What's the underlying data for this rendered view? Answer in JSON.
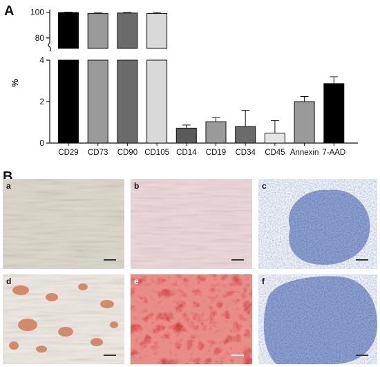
{
  "panels": {
    "a_label": "A",
    "b_label": "B"
  },
  "chart_data": {
    "type": "bar",
    "xlabel": "",
    "ylabel": "%",
    "categories": [
      "CD29",
      "CD73",
      "CD90",
      "CD105",
      "CD14",
      "CD19",
      "CD34",
      "CD45",
      "Annexin",
      "7-AAD"
    ],
    "values": [
      99.8,
      99.0,
      99.4,
      99.0,
      0.72,
      1.03,
      0.8,
      0.48,
      2.0,
      2.87
    ],
    "errors": [
      0.3,
      0.5,
      0.4,
      0.8,
      0.15,
      0.2,
      0.78,
      0.6,
      0.25,
      0.33
    ],
    "colors": [
      "#000000",
      "#9a9a9a",
      "#6b6b6b",
      "#d9d9d9",
      "#5a5a5a",
      "#9a9a9a",
      "#6b6b6b",
      "#e6e6e6",
      "#9a9a9a",
      "#000000"
    ],
    "axis_break": true,
    "upper_ylim": [
      74,
      102
    ],
    "upper_ticks": [
      "100",
      "80"
    ],
    "lower_ylim": [
      0,
      4
    ],
    "lower_ticks": [
      "0",
      "2",
      "4"
    ]
  },
  "micrographs": {
    "row1": [
      {
        "letter": "a",
        "description_color": "#d9d2c3"
      },
      {
        "letter": "b",
        "description_color": "#e8c9cf"
      },
      {
        "letter": "c",
        "description_color": "#7f95c4"
      }
    ],
    "row2": [
      {
        "letter": "d",
        "description_color": "#d88a6a"
      },
      {
        "letter": "e",
        "description_color": "#d01e1e"
      },
      {
        "letter": "f",
        "description_color": "#7f95c4"
      }
    ]
  }
}
